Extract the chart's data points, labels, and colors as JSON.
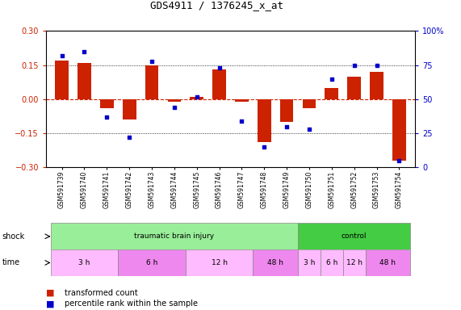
{
  "title": "GDS4911 / 1376245_x_at",
  "samples": [
    "GSM591739",
    "GSM591740",
    "GSM591741",
    "GSM591742",
    "GSM591743",
    "GSM591744",
    "GSM591745",
    "GSM591746",
    "GSM591747",
    "GSM591748",
    "GSM591749",
    "GSM591750",
    "GSM591751",
    "GSM591752",
    "GSM591753",
    "GSM591754"
  ],
  "bar_values": [
    0.17,
    0.16,
    -0.04,
    -0.09,
    0.15,
    -0.01,
    0.01,
    0.13,
    -0.01,
    -0.19,
    -0.1,
    -0.04,
    0.05,
    0.1,
    0.12,
    -0.27
  ],
  "dot_values": [
    82,
    85,
    37,
    22,
    78,
    44,
    52,
    73,
    34,
    15,
    30,
    28,
    65,
    75,
    75,
    5
  ],
  "ylim_left": [
    -0.3,
    0.3
  ],
  "ylim_right": [
    0,
    100
  ],
  "yticks_left": [
    -0.3,
    -0.15,
    0,
    0.15,
    0.3
  ],
  "yticks_right": [
    0,
    25,
    50,
    75,
    100
  ],
  "bar_color": "#cc2200",
  "dot_color": "#0000cc",
  "zero_line_color": "#cc2200",
  "grid_line_color": "#000000",
  "shock_groups": [
    {
      "label": "traumatic brain injury",
      "start": 0,
      "end": 11,
      "color": "#99ee99"
    },
    {
      "label": "control",
      "start": 11,
      "end": 16,
      "color": "#44cc44"
    }
  ],
  "time_groups": [
    {
      "label": "3 h",
      "start": 0,
      "end": 3,
      "color": "#ffbbff"
    },
    {
      "label": "6 h",
      "start": 3,
      "end": 6,
      "color": "#ee88ee"
    },
    {
      "label": "12 h",
      "start": 6,
      "end": 9,
      "color": "#ffbbff"
    },
    {
      "label": "48 h",
      "start": 9,
      "end": 11,
      "color": "#ee88ee"
    },
    {
      "label": "3 h",
      "start": 11,
      "end": 12,
      "color": "#ffbbff"
    },
    {
      "label": "6 h",
      "start": 12,
      "end": 13,
      "color": "#ffbbff"
    },
    {
      "label": "12 h",
      "start": 13,
      "end": 14,
      "color": "#ffbbff"
    },
    {
      "label": "48 h",
      "start": 14,
      "end": 16,
      "color": "#ee88ee"
    }
  ]
}
